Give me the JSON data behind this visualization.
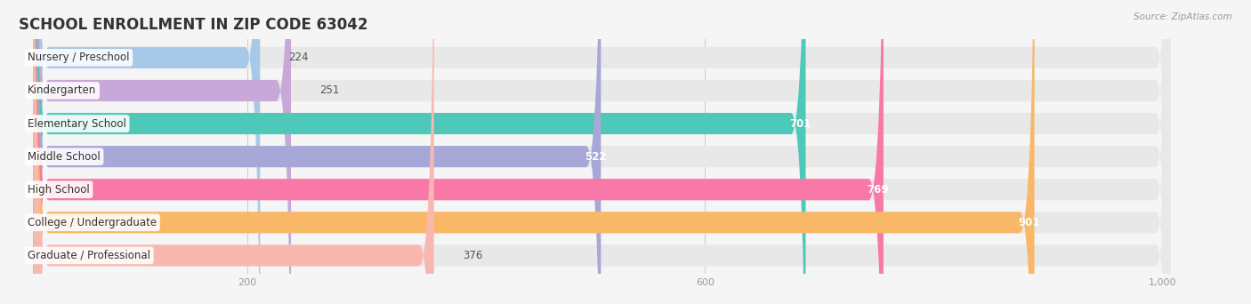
{
  "title": "SCHOOL ENROLLMENT IN ZIP CODE 63042",
  "source": "Source: ZipAtlas.com",
  "categories": [
    "Nursery / Preschool",
    "Kindergarten",
    "Elementary School",
    "Middle School",
    "High School",
    "College / Undergraduate",
    "Graduate / Professional"
  ],
  "values": [
    224,
    251,
    701,
    522,
    769,
    901,
    376
  ],
  "bar_colors": [
    "#a8c8e8",
    "#c8a8d8",
    "#4ec8b8",
    "#a8a8d8",
    "#f878a8",
    "#f8b868",
    "#f8b8b0"
  ],
  "bar_bg_color": "#e8e8e8",
  "xlim": [
    0,
    1050
  ],
  "xticks": [
    200,
    600,
    1000
  ],
  "xticklabels": [
    "200",
    "600",
    "1,000"
  ],
  "title_fontsize": 12,
  "label_fontsize": 8.5,
  "value_fontsize": 8.5,
  "bg_color": "#f5f5f5",
  "bar_height": 0.65
}
